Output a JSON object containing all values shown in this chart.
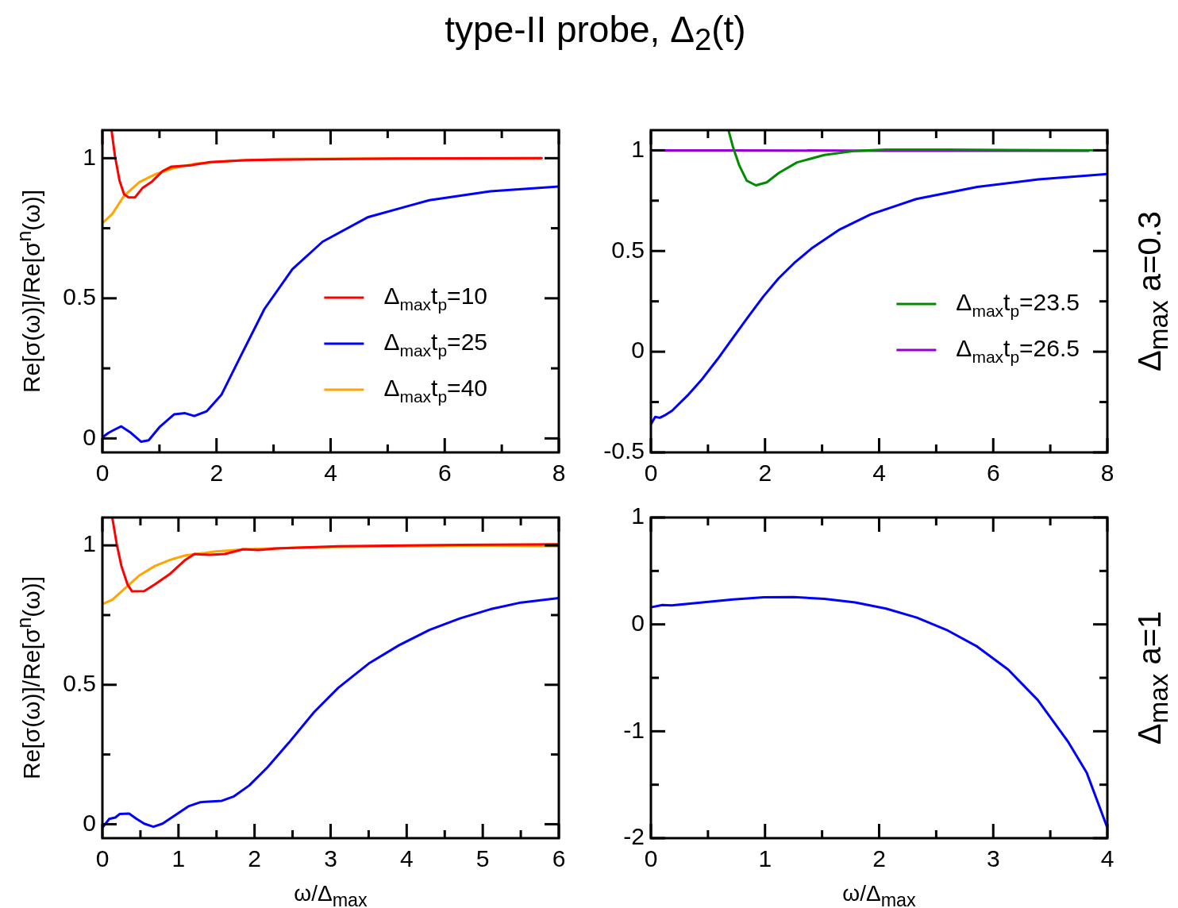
{
  "chart_data": [
    {
      "type": "line",
      "title": "type-II probe, Δ$_{2}$(t)",
      "ylabel": "Re[σ(ω)]/Re[σ$^{n}$(ω)]",
      "xlim": [
        0,
        8
      ],
      "xticks": [
        0,
        {
          "value": 1,
          "label": null
        },
        2,
        {
          "value": 3,
          "label": null
        },
        4,
        {
          "value": 5,
          "label": null
        },
        6,
        {
          "value": 7,
          "label": null
        },
        8
      ],
      "ylim": [
        -0.05,
        1.1
      ],
      "yticks": [
        0,
        {
          "value": 0.25,
          "label": null
        },
        0.5,
        {
          "value": 0.75,
          "label": null
        },
        1
      ],
      "legend": "bottom right",
      "marker": "none",
      "line_style": "solid",
      "series": [
        {
          "name": "Δ$_{max}$t$_{p}$=10",
          "color": "#ff0000",
          "x": [
            0.16,
            0.22,
            0.3,
            0.38,
            0.46,
            0.57,
            0.7,
            0.86,
            1.05,
            1.21,
            1.56,
            1.88,
            2.52,
            3.59,
            5.2,
            7.7
          ],
          "values": [
            1.1,
            1.008,
            0.92,
            0.871,
            0.86,
            0.86,
            0.893,
            0.915,
            0.953,
            0.97,
            0.975,
            0.986,
            0.993,
            0.996,
            0.999,
            1.0
          ]
        },
        {
          "name": "Δ$_{max}$t$_{p}$=25",
          "color": "#0000ff",
          "x": [
            0,
            0.11,
            0.2,
            0.33,
            0.5,
            0.68,
            0.81,
            1.0,
            1.26,
            1.45,
            1.61,
            1.83,
            2.09,
            2.41,
            2.84,
            3.33,
            3.86,
            4.66,
            5.73,
            6.8,
            8
          ],
          "values": [
            0.004,
            0.02,
            0.03,
            0.043,
            0.02,
            -0.012,
            -0.007,
            0.04,
            0.086,
            0.09,
            0.08,
            0.097,
            0.157,
            0.288,
            0.462,
            0.604,
            0.702,
            0.79,
            0.85,
            0.882,
            0.899
          ]
        },
        {
          "name": "Δ$_{max}$t$_{p}$=40",
          "color": "#ffa500",
          "x": [
            0,
            0.17,
            0.38,
            0.65,
            0.92,
            1.24,
            1.61,
            2.26,
            3.06,
            4.66,
            7.68
          ],
          "values": [
            0.768,
            0.8,
            0.866,
            0.915,
            0.942,
            0.964,
            0.98,
            0.99,
            0.997,
            0.999,
            1.0
          ]
        }
      ]
    },
    {
      "type": "line",
      "annotations": [
        "Δ$_{max}$ a=0.3"
      ],
      "xlim": [
        0,
        8
      ],
      "xticks": [
        0,
        {
          "value": 1,
          "label": null
        },
        2,
        {
          "value": 3,
          "label": null
        },
        4,
        {
          "value": 5,
          "label": null
        },
        6,
        {
          "value": 7,
          "label": null
        },
        8
      ],
      "ylim": [
        -0.5,
        1.1
      ],
      "yticks": [
        -0.5,
        {
          "value": -0.25,
          "label": null
        },
        0,
        {
          "value": 0.25,
          "label": null
        },
        0.5,
        {
          "value": 0.75,
          "label": null
        },
        1
      ],
      "legend": "right",
      "marker": "none",
      "line_style": "solid",
      "series": [
        {
          "color": "#0000ff",
          "x": [
            0,
            0.075,
            0.155,
            0.26,
            0.37,
            0.64,
            0.9,
            1.17,
            1.44,
            1.71,
            1.97,
            2.24,
            2.51,
            2.83,
            3.31,
            3.85,
            4.65,
            5.72,
            6.79,
            8
          ],
          "values": [
            -0.36,
            -0.324,
            -0.328,
            -0.313,
            -0.293,
            -0.218,
            -0.135,
            -0.036,
            0.07,
            0.175,
            0.274,
            0.365,
            0.44,
            0.516,
            0.607,
            0.682,
            0.758,
            0.818,
            0.856,
            0.882
          ]
        },
        {
          "name": "Δ$_{max}$t$_{p}$=23.5",
          "color": "#008b00",
          "x": [
            1.36,
            1.44,
            1.55,
            1.68,
            1.84,
            2.03,
            2.24,
            2.56,
            3.04,
            3.58,
            4.11,
            5.18,
            8
          ],
          "values": [
            1.1,
            1.015,
            0.924,
            0.849,
            0.826,
            0.841,
            0.887,
            0.94,
            0.977,
            0.997,
            1.003,
            1.003,
            1.0
          ]
        },
        {
          "name": "Δ$_{max}$t$_{p}$=26.5",
          "color": "#9400d3",
          "x": [
            0,
            1.44,
            4.11,
            7.67
          ],
          "values": [
            1.0,
            1.0,
            0.998,
            0.998
          ]
        }
      ]
    },
    {
      "type": "line",
      "xlabel": "ω/Δ$_{max}$",
      "ylabel": "Re[σ(ω)]/Re[σ$^{n}$(ω)]",
      "xlim": [
        0,
        6
      ],
      "xticks": [
        0,
        {
          "value": 0.5,
          "label": null
        },
        1,
        {
          "value": 1.5,
          "label": null
        },
        2,
        {
          "value": 2.5,
          "label": null
        },
        3,
        {
          "value": 3.5,
          "label": null
        },
        4,
        {
          "value": 4.5,
          "label": null
        },
        5,
        {
          "value": 5.5,
          "label": null
        },
        6
      ],
      "ylim": [
        -0.05,
        1.1
      ],
      "yticks": [
        0,
        {
          "value": 0.25,
          "label": null
        },
        0.5,
        {
          "value": 0.75,
          "label": null
        },
        1
      ],
      "marker": "none",
      "line_style": "solid",
      "series": [
        {
          "color": "#ff0000",
          "x": [
            0.13,
            0.19,
            0.25,
            0.33,
            0.39,
            0.55,
            0.69,
            0.89,
            1.09,
            1.21,
            1.41,
            1.61,
            1.85,
            2.05,
            2.29,
            3.1,
            4.7,
            6
          ],
          "values": [
            1.1,
            1.002,
            0.926,
            0.86,
            0.835,
            0.836,
            0.86,
            0.898,
            0.948,
            0.969,
            0.966,
            0.969,
            0.986,
            0.983,
            0.989,
            0.997,
            1.002,
            1.004
          ]
        },
        {
          "color": "#0000ff",
          "x": [
            0.01,
            0.09,
            0.17,
            0.23,
            0.35,
            0.45,
            0.55,
            0.67,
            0.79,
            0.97,
            1.13,
            1.29,
            1.57,
            1.73,
            1.93,
            2.17,
            2.45,
            2.78,
            3.1,
            3.5,
            3.9,
            4.3,
            4.7,
            5.1,
            5.5,
            6
          ],
          "values": [
            -0.009,
            0.019,
            0.024,
            0.037,
            0.038,
            0.019,
            0.002,
            -0.009,
            0.002,
            0.035,
            0.064,
            0.079,
            0.084,
            0.1,
            0.139,
            0.204,
            0.292,
            0.401,
            0.489,
            0.576,
            0.642,
            0.697,
            0.738,
            0.771,
            0.795,
            0.811
          ]
        },
        {
          "color": "#ffa500",
          "x": [
            0,
            0.13,
            0.29,
            0.49,
            0.69,
            0.89,
            1.09,
            1.49,
            1.89,
            2.7,
            3.9,
            5.1,
            6
          ],
          "values": [
            0.789,
            0.805,
            0.844,
            0.893,
            0.926,
            0.948,
            0.964,
            0.978,
            0.986,
            0.993,
            0.997,
            0.999,
            0.997
          ]
        }
      ]
    },
    {
      "type": "line",
      "xlabel": "ω/Δ$_{max}$",
      "annotations": [
        "Δ$_{max}$ a=1"
      ],
      "xlim": [
        0,
        4
      ],
      "xticks": [
        0,
        {
          "value": 0.5,
          "label": null
        },
        1,
        {
          "value": 1.5,
          "label": null
        },
        2,
        {
          "value": 2.5,
          "label": null
        },
        3,
        {
          "value": 3.5,
          "label": null
        },
        4
      ],
      "ylim": [
        -2,
        1
      ],
      "yticks": [
        -2,
        {
          "value": -1.5,
          "label": null
        },
        -1,
        {
          "value": -0.5,
          "label": null
        },
        0,
        {
          "value": 0.5,
          "label": null
        },
        1
      ],
      "marker": "none",
      "line_style": "solid",
      "series": [
        {
          "color": "#0000ff",
          "x": [
            0.01,
            0.1,
            0.18,
            0.45,
            0.72,
            0.99,
            1.25,
            1.52,
            1.79,
            2.06,
            2.33,
            2.59,
            2.86,
            3.13,
            3.39,
            3.66,
            3.82,
            4
          ],
          "values": [
            0.162,
            0.182,
            0.177,
            0.205,
            0.234,
            0.254,
            0.256,
            0.239,
            0.205,
            0.148,
            0.063,
            -0.051,
            -0.208,
            -0.422,
            -0.707,
            -1.105,
            -1.39,
            -1.903
          ]
        }
      ]
    }
  ]
}
